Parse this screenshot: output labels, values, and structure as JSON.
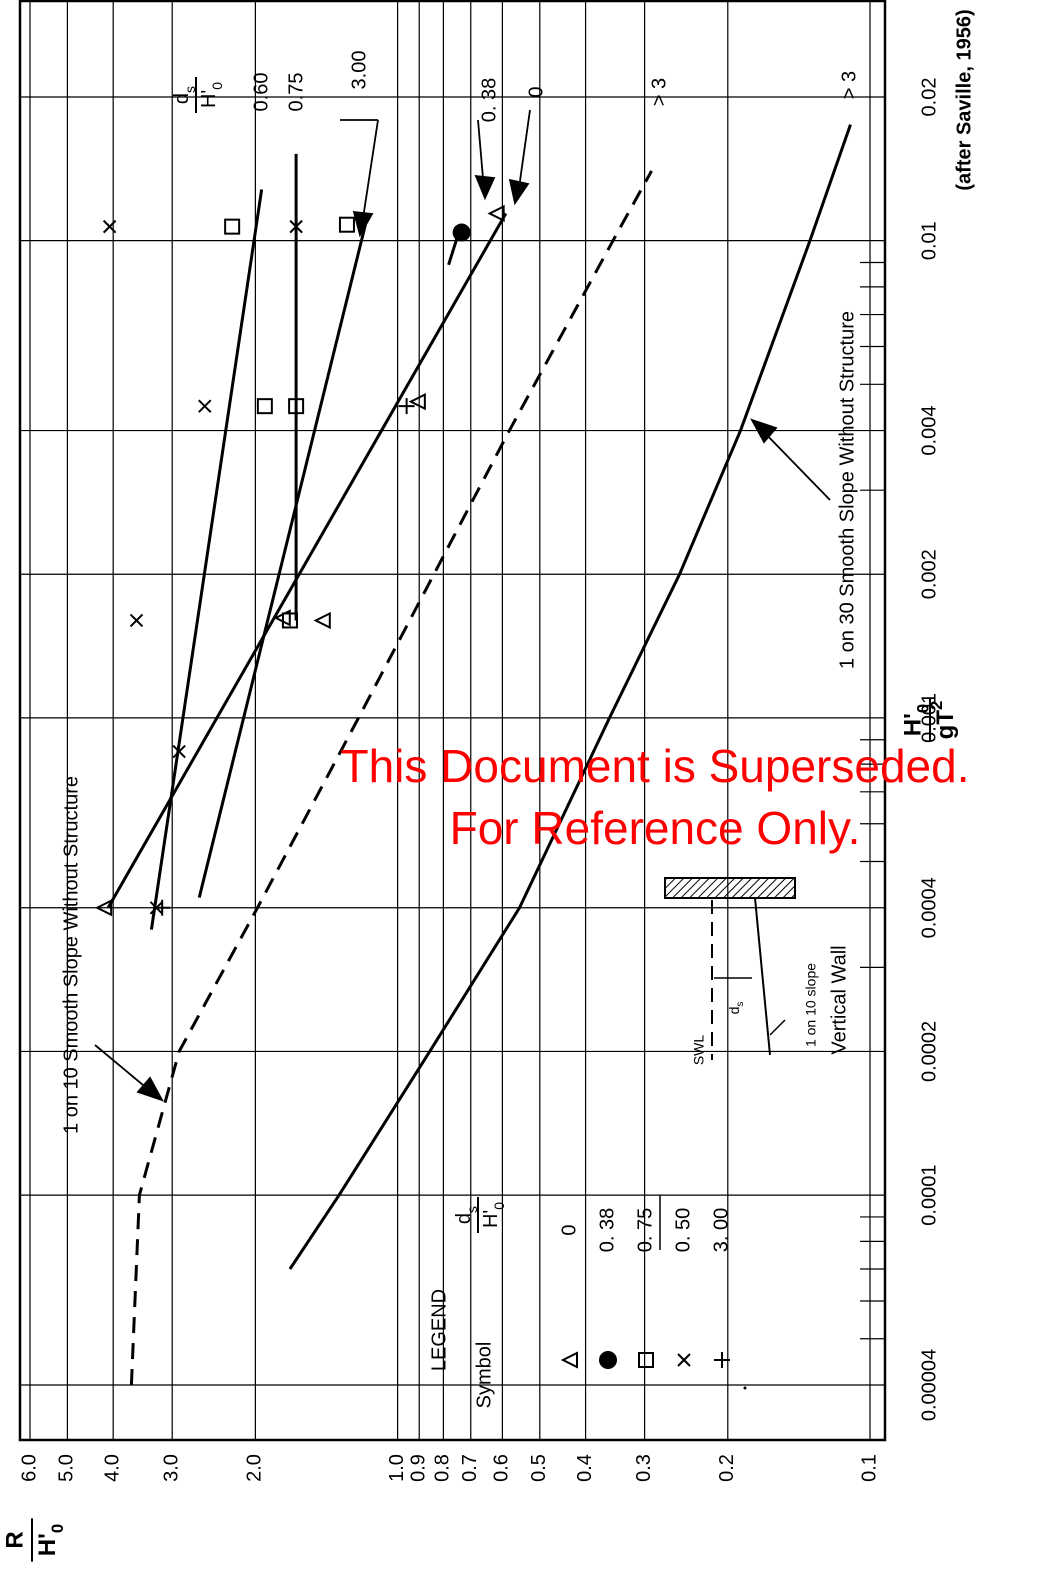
{
  "chart_data": {
    "type": "line",
    "xscale": "log",
    "yscale": "log",
    "xlim": [
      4e-05,
      0.02
    ],
    "ylim": [
      0.1,
      6.0
    ],
    "xticks": [
      4e-05,
      0.0001,
      0.0002,
      0.0004,
      0.001,
      0.002,
      0.004,
      0.01,
      0.02
    ],
    "xminor_ticks": [
      5e-05,
      6e-05,
      7e-05,
      8e-05,
      9e-05,
      0.0003,
      0.0005,
      0.0006,
      0.0007,
      0.0008,
      0.0009,
      0.003,
      0.005,
      0.006,
      0.007,
      0.008,
      0.009
    ],
    "yticks": [
      0.1,
      0.2,
      0.3,
      0.4,
      0.5,
      0.6,
      0.7,
      0.8,
      0.9,
      {
        "value": 1,
        "label": "1.0"
      },
      {
        "value": 2,
        "label": "2.0"
      },
      {
        "value": 3,
        "label": "3.0"
      },
      {
        "value": 4,
        "label": "4.0"
      },
      {
        "value": 5,
        "label": "5.0"
      },
      {
        "value": 6,
        "label": "6.0"
      }
    ],
    "grid": true,
    "x_label": {
      "numerator": "H'",
      "numerator_sub": "0",
      "denominator": "gT",
      "denominator_sup": "2"
    },
    "y_label": {
      "numerator": "R",
      "denominator": "H'",
      "denominator_sub": "0"
    },
    "ratio_header": {
      "numerator": "d",
      "numerator_sub": "s",
      "denominator": "H'",
      "denominator_sub": "0"
    },
    "source": "(after Saville, 1956)",
    "series": [
      {
        "name": "1 on 10 Smooth Slope Without Structure",
        "label": "> 3",
        "color": "#000000",
        "dashed": true,
        "x": [
          4e-05,
          0.0001,
          0.0002,
          0.0004,
          0.001,
          0.004,
          0.01,
          0.014
        ],
        "values": [
          3.66,
          3.52,
          2.9,
          1.98,
          1.21,
          0.58,
          0.35,
          0.29
        ]
      },
      {
        "name": "1 on 30 Smooth Slope Without Structure",
        "label": "> 3",
        "color": "#000000",
        "dashed": false,
        "x": [
          7e-05,
          0.0001,
          0.0002,
          0.0004,
          0.001,
          0.002,
          0.004,
          0.01,
          0.0175
        ],
        "values": [
          1.69,
          1.33,
          0.855,
          0.552,
          0.356,
          0.253,
          0.188,
          0.134,
          0.11
        ]
      },
      {
        "name": "0",
        "color": "#000000",
        "dashed": false,
        "x": [
          0.0004,
          0.0114
        ],
        "values": [
          4.1,
          0.59
        ]
      },
      {
        "name": "0. 38",
        "color": "#000000",
        "dashed": false,
        "x": [
          0.0089,
          0.0105
        ],
        "values": [
          0.78,
          0.74
        ]
      },
      {
        "name": "0.60",
        "color": "#000000",
        "dashed": false,
        "x": [
          0.00036,
          0.0128
        ],
        "values": [
          3.32,
          1.94
        ]
      },
      {
        "name": "0.75",
        "color": "#000000",
        "dashed": false,
        "x": [
          0.0016,
          0.0152
        ],
        "values": [
          1.64,
          1.64
        ]
      },
      {
        "name": "3.00",
        "color": "#000000",
        "dashed": false,
        "x": [
          0.00042,
          0.0108
        ],
        "values": [
          2.63,
          1.17
        ]
      }
    ],
    "points": [
      {
        "symbol": "triangle",
        "x": [
          0.0004,
          0.0046,
          0.00162,
          0.0016,
          0.0114
        ],
        "values": [
          4.18,
          0.906,
          1.75,
          1.44,
          0.617
        ]
      },
      {
        "symbol": "circle",
        "x": [
          0.0104
        ],
        "values": [
          0.732
        ]
      },
      {
        "symbol": "square",
        "x": [
          0.0107,
          0.0108,
          0.0045,
          0.0045,
          0.0016
        ],
        "values": [
          2.24,
          1.28,
          1.91,
          1.64,
          1.69
        ]
      },
      {
        "symbol": "cross",
        "x": [
          0.0107,
          0.0045,
          0.0016,
          0.00085,
          0.0004,
          0.0107
        ],
        "values": [
          4.07,
          2.56,
          3.57,
          2.9,
          3.24,
          1.64
        ]
      },
      {
        "symbol": "plus",
        "x": [
          0.0045,
          0.0004
        ],
        "values": [
          0.957,
          3.15
        ]
      }
    ],
    "legend": {
      "title": "LEGEND",
      "symbol_header": "Symbol",
      "rows": [
        {
          "symbol": "triangle",
          "ratio": "0"
        },
        {
          "symbol": "circle",
          "ratio": "0. 38"
        },
        {
          "symbol": "square",
          "ratio": "0. 75"
        },
        {
          "symbol": "cross",
          "ratio": "0. 50"
        },
        {
          "symbol": "plus",
          "ratio": "3. 00"
        }
      ]
    },
    "inset": {
      "swl": "SWL",
      "depth": "d",
      "depth_sub": "s",
      "slope": "1 on 10 slope",
      "wall": "Vertical Wall"
    },
    "watermark": [
      "This Document is Superseded.",
      "For Reference Only."
    ]
  }
}
